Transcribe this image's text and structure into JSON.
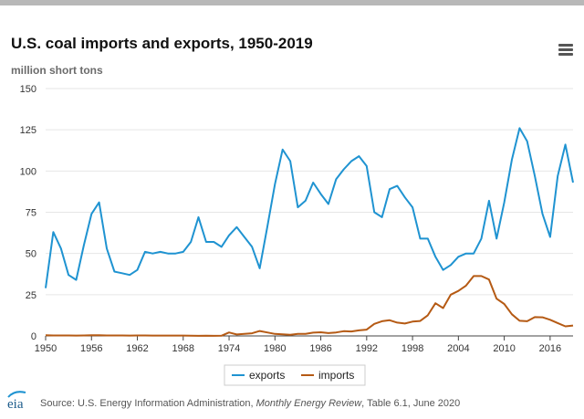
{
  "header": {
    "title": "U.S. coal imports and exports, 1950-2019",
    "subtitle": "million short tons",
    "menu_icon": "hamburger-menu-icon"
  },
  "legend": {
    "items": [
      {
        "label": "exports",
        "color": "#1f93d1"
      },
      {
        "label": "imports",
        "color": "#b55a14"
      }
    ]
  },
  "footer": {
    "logo_text": "eia",
    "source_prefix": "Source: U.S. Energy Information Administration, ",
    "source_italic": "Monthly Energy Review",
    "source_suffix": ", Table 6.1, June 2020"
  },
  "chart_data": {
    "type": "line",
    "title": "U.S. coal imports and exports, 1950-2019",
    "ylabel": "million short tons",
    "xlabel": "",
    "ylim": [
      0,
      150
    ],
    "xlim": [
      1950,
      2019
    ],
    "yticks": [
      0,
      25,
      50,
      75,
      100,
      125,
      150
    ],
    "xticks": [
      1950,
      1956,
      1962,
      1968,
      1974,
      1980,
      1986,
      1992,
      1998,
      2004,
      2010,
      2016
    ],
    "grid": "horizontal",
    "legend_position": "bottom-center",
    "x": [
      1950,
      1951,
      1952,
      1953,
      1954,
      1955,
      1956,
      1957,
      1958,
      1959,
      1960,
      1961,
      1962,
      1963,
      1964,
      1965,
      1966,
      1967,
      1968,
      1969,
      1970,
      1971,
      1972,
      1973,
      1974,
      1975,
      1976,
      1977,
      1978,
      1979,
      1980,
      1981,
      1982,
      1983,
      1984,
      1985,
      1986,
      1987,
      1988,
      1989,
      1990,
      1991,
      1992,
      1993,
      1994,
      1995,
      1996,
      1997,
      1998,
      1999,
      2000,
      2001,
      2002,
      2003,
      2004,
      2005,
      2006,
      2007,
      2008,
      2009,
      2010,
      2011,
      2012,
      2013,
      2014,
      2015,
      2016,
      2017,
      2018,
      2019
    ],
    "series": [
      {
        "name": "exports",
        "color": "#1f93d1",
        "values": [
          29,
          63,
          53,
          37,
          34,
          55,
          74,
          81,
          53,
          39,
          38,
          37,
          40,
          51,
          50,
          51,
          50,
          50,
          51,
          57,
          72,
          57,
          57,
          54,
          61,
          66,
          60,
          54,
          41,
          66,
          92,
          113,
          106,
          78,
          82,
          93,
          86,
          80,
          95,
          101,
          106,
          109,
          103,
          75,
          72,
          89,
          91,
          84,
          78,
          59,
          59,
          48,
          40,
          43,
          48,
          50,
          50,
          59,
          82,
          59,
          81,
          107,
          126,
          118,
          97,
          74,
          60,
          97,
          116,
          93
        ]
      },
      {
        "name": "imports",
        "color": "#b55a14",
        "values": [
          0.4,
          0.3,
          0.3,
          0.3,
          0.2,
          0.3,
          0.4,
          0.4,
          0.3,
          0.3,
          0.3,
          0.2,
          0.3,
          0.3,
          0.2,
          0.2,
          0.2,
          0.2,
          0.2,
          0.1,
          0.04,
          0.1,
          0.05,
          0.1,
          2.1,
          0.9,
          1.2,
          1.6,
          3,
          2.1,
          1.2,
          1,
          0.7,
          1.3,
          1.3,
          2,
          2.2,
          1.7,
          2.1,
          2.9,
          2.7,
          3.4,
          3.8,
          7.3,
          8.9,
          9.5,
          8.1,
          7.5,
          8.7,
          9.1,
          12.5,
          19.8,
          16.9,
          25,
          27.3,
          30.5,
          36.3,
          36.3,
          34.2,
          22.6,
          19.4,
          13.1,
          9.2,
          8.9,
          11.4,
          11.3,
          9.8,
          7.8,
          5.8,
          6.3
        ]
      }
    ]
  }
}
